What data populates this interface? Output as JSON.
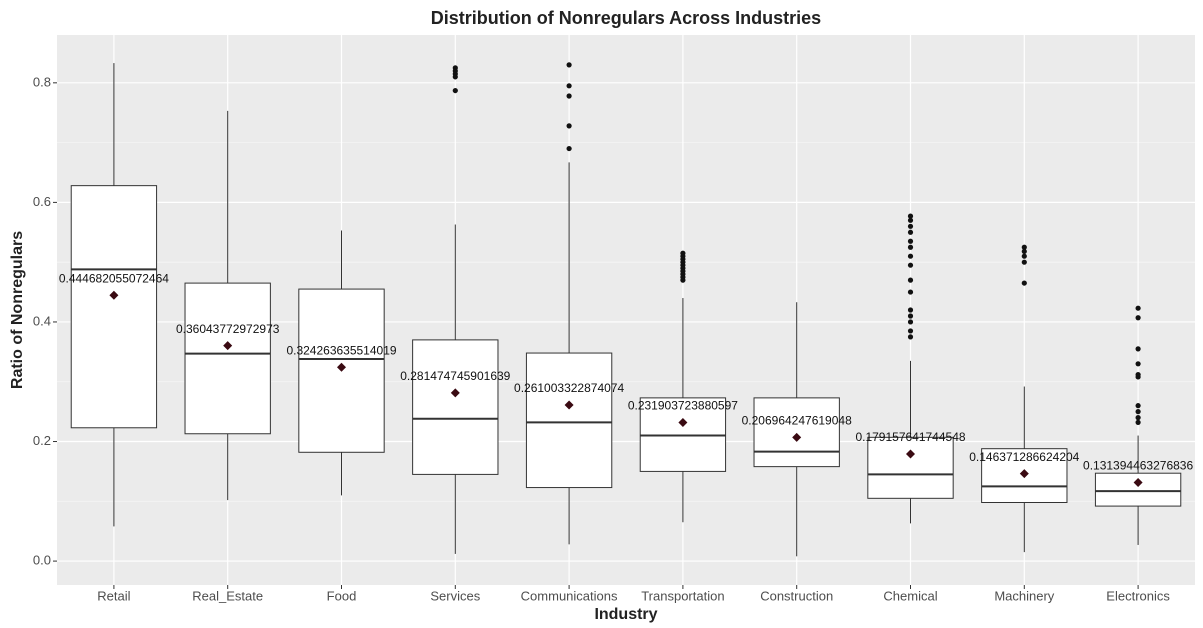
{
  "chart_data": {
    "type": "box",
    "title": "Distribution of Nonregulars Across Industries",
    "x_label": "Industry",
    "y_label": "Ratio of Nonregulars",
    "categories": [
      "Retail",
      "Real_Estate",
      "Food",
      "Services",
      "Communications",
      "Transportation",
      "Construction",
      "Chemical",
      "Machinery",
      "Electronics"
    ],
    "boxes": [
      {
        "min": 0.058,
        "q1": 0.223,
        "median": 0.488,
        "q3": 0.628,
        "max": 0.833,
        "mean": 0.444682055072464,
        "outliers": []
      },
      {
        "min": 0.102,
        "q1": 0.213,
        "median": 0.347,
        "q3": 0.465,
        "max": 0.753,
        "mean": 0.36043772972973,
        "outliers": []
      },
      {
        "min": 0.11,
        "q1": 0.182,
        "median": 0.338,
        "q3": 0.455,
        "max": 0.553,
        "mean": 0.324263635514019,
        "outliers": []
      },
      {
        "min": 0.012,
        "q1": 0.145,
        "median": 0.238,
        "q3": 0.37,
        "max": 0.563,
        "mean": 0.281474745901639,
        "outliers": [
          0.825,
          0.82,
          0.815,
          0.81,
          0.787
        ]
      },
      {
        "min": 0.028,
        "q1": 0.123,
        "median": 0.232,
        "q3": 0.348,
        "max": 0.667,
        "mean": 0.261003322874074,
        "outliers": [
          0.83,
          0.795,
          0.778,
          0.728,
          0.69
        ]
      },
      {
        "min": 0.065,
        "q1": 0.15,
        "median": 0.21,
        "q3": 0.273,
        "max": 0.44,
        "mean": 0.231903723880597,
        "outliers": [
          0.515,
          0.51,
          0.505,
          0.5,
          0.495,
          0.49,
          0.485,
          0.48,
          0.475,
          0.47
        ]
      },
      {
        "min": 0.008,
        "q1": 0.158,
        "median": 0.183,
        "q3": 0.273,
        "max": 0.433,
        "mean": 0.206964247619048,
        "outliers": []
      },
      {
        "min": 0.063,
        "q1": 0.105,
        "median": 0.145,
        "q3": 0.207,
        "max": 0.335,
        "mean": 0.179157641744548,
        "outliers": [
          0.577,
          0.57,
          0.56,
          0.55,
          0.535,
          0.525,
          0.51,
          0.495,
          0.47,
          0.45,
          0.42,
          0.41,
          0.4,
          0.385,
          0.375
        ]
      },
      {
        "min": 0.015,
        "q1": 0.098,
        "median": 0.125,
        "q3": 0.188,
        "max": 0.292,
        "mean": 0.146371286624204,
        "outliers": [
          0.525,
          0.518,
          0.51,
          0.5,
          0.465
        ]
      },
      {
        "min": 0.027,
        "q1": 0.092,
        "median": 0.117,
        "q3": 0.147,
        "max": 0.21,
        "mean": 0.131394463276836,
        "outliers": [
          0.423,
          0.407,
          0.355,
          0.33,
          0.312,
          0.308,
          0.26,
          0.25,
          0.24,
          0.232
        ]
      }
    ],
    "ylim": [
      -0.04,
      0.88
    ],
    "yticks": [
      {
        "value": 0,
        "label": "0.0"
      },
      0.2,
      0.4,
      0.6,
      0.8
    ],
    "grid": true,
    "background": "#ebebeb",
    "mean_color": "#3a0a12"
  }
}
